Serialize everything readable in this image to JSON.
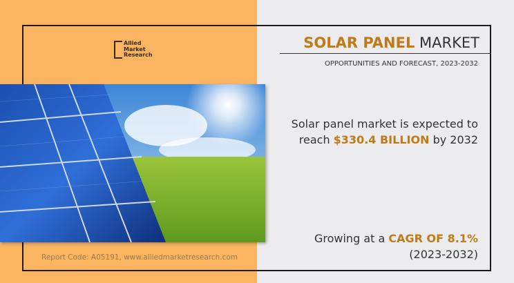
{
  "logo": {
    "lines": [
      "Allied",
      "Market",
      "Research"
    ]
  },
  "title": {
    "highlight": "SOLAR PANEL",
    "rest": "MARKET"
  },
  "subtitle": "OPPORTUNITIES AND FORECAST, 2023-2032",
  "statement1": {
    "pre": "Solar panel market is expected to",
    "pre2": "reach",
    "value": "$330.4 BILLION",
    "post": "by 2032"
  },
  "statement2": {
    "pre": "Growing at a",
    "value": "CAGR OF 8.1%",
    "period": "(2023-2032)"
  },
  "footer": "Report Code: A05191, www.alliedmarketresearch.com",
  "colors": {
    "accent": "#c07a18",
    "panel": "#fbb561",
    "background": "#ececee"
  }
}
